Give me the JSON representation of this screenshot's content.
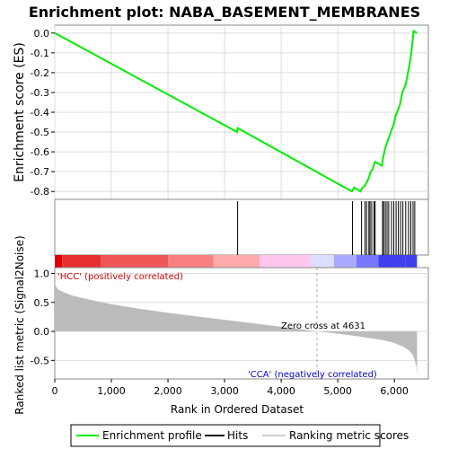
{
  "chart_data": {
    "type": "line",
    "title": "Enrichment plot: NABA_BASEMENT_MEMBRANES",
    "top_panel": {
      "ylabel": "Enrichment score (ES)",
      "ylim": [
        -0.84,
        0.04
      ],
      "yticks": [
        "0.0",
        "-0.1",
        "-0.2",
        "-0.3",
        "-0.4",
        "-0.5",
        "-0.6",
        "-0.7",
        "-0.8"
      ],
      "ytick_values": [
        0.0,
        -0.1,
        -0.2,
        -0.3,
        -0.4,
        -0.5,
        -0.6,
        -0.7,
        -0.8
      ],
      "grid": true,
      "series": [
        {
          "name": "Enrichment profile",
          "color": "#00ee00",
          "x": [
            0,
            3220,
            3230,
            5250,
            5290,
            5400,
            5440,
            5480,
            5520,
            5550,
            5580,
            5610,
            5660,
            5780,
            5800,
            5830,
            5860,
            5900,
            5950,
            5990,
            6020,
            6060,
            6100,
            6140,
            6200,
            6240,
            6280,
            6310,
            6340,
            6400
          ],
          "y": [
            0.0,
            -0.5,
            -0.48,
            -0.8,
            -0.78,
            -0.8,
            -0.78,
            -0.77,
            -0.75,
            -0.73,
            -0.7,
            -0.69,
            -0.65,
            -0.67,
            -0.63,
            -0.59,
            -0.56,
            -0.53,
            -0.49,
            -0.46,
            -0.42,
            -0.39,
            -0.36,
            -0.3,
            -0.26,
            -0.2,
            -0.14,
            -0.07,
            0.01,
            0.0
          ]
        }
      ]
    },
    "hits": {
      "name": "Hits",
      "x": [
        3230,
        5260,
        5420,
        5480,
        5510,
        5550,
        5570,
        5600,
        5640,
        5660,
        5790,
        5810,
        5840,
        5870,
        5900,
        5950,
        5990,
        6030,
        6070,
        6110,
        6150,
        6200,
        6250,
        6290,
        6330,
        6360
      ]
    },
    "color_bar": {
      "stops": [
        "#dd0000",
        "#e83030",
        "#f05858",
        "#f88080",
        "#ffaaaa",
        "#ffc6ee",
        "#ddddff",
        "#aaaaff",
        "#7777ff",
        "#4040ee"
      ],
      "boundaries": [
        0,
        130,
        820,
        2000,
        2800,
        3620,
        4520,
        4930,
        5330,
        5720,
        6200,
        6400
      ]
    },
    "bottom_panel": {
      "ylabel": "Ranked list metric (Signal2Noise)",
      "ylim": [
        -0.82,
        1.1
      ],
      "yticks": [
        "1.0",
        "0.5",
        "0.0",
        "-0.5"
      ],
      "ytick_values": [
        1.0,
        0.5,
        0.0,
        -0.5
      ],
      "series": [
        {
          "name": "Ranking metric scores",
          "color": "#bbbbbb",
          "x": [
            0,
            20,
            60,
            150,
            300,
            600,
            1000,
            1500,
            2000,
            2500,
            3000,
            3500,
            4000,
            4400,
            4631,
            5000,
            5400,
            5800,
            6000,
            6150,
            6250,
            6320,
            6360,
            6390,
            6400
          ],
          "y": [
            0.85,
            0.78,
            0.72,
            0.68,
            0.62,
            0.55,
            0.47,
            0.39,
            0.32,
            0.26,
            0.2,
            0.14,
            0.08,
            0.03,
            0.0,
            -0.04,
            -0.09,
            -0.15,
            -0.2,
            -0.26,
            -0.32,
            -0.4,
            -0.5,
            -0.62,
            -0.8
          ]
        }
      ],
      "zero_cross_label": "Zero cross at 4631",
      "zero_cross": 4631,
      "pos_label": "'HCC' (positively correlated)",
      "neg_label": "'CCA' (negatively correlated)"
    },
    "xlabel": "Rank in Ordered Dataset",
    "xlim": [
      0,
      6600
    ],
    "xticks": [
      "0",
      "1,000",
      "2,000",
      "3,000",
      "4,000",
      "5,000",
      "6,000"
    ],
    "xtick_values": [
      0,
      1000,
      2000,
      3000,
      4000,
      5000,
      6000
    ],
    "legend": [
      {
        "label": "Enrichment profile",
        "color": "#00ee00"
      },
      {
        "label": "Hits",
        "color": "#000000"
      },
      {
        "label": "Ranking metric scores",
        "color": "#cccccc"
      }
    ],
    "colors": {
      "pos_label": "#cc0000",
      "neg_label": "#0000cc",
      "grid": "#dddddd"
    }
  }
}
